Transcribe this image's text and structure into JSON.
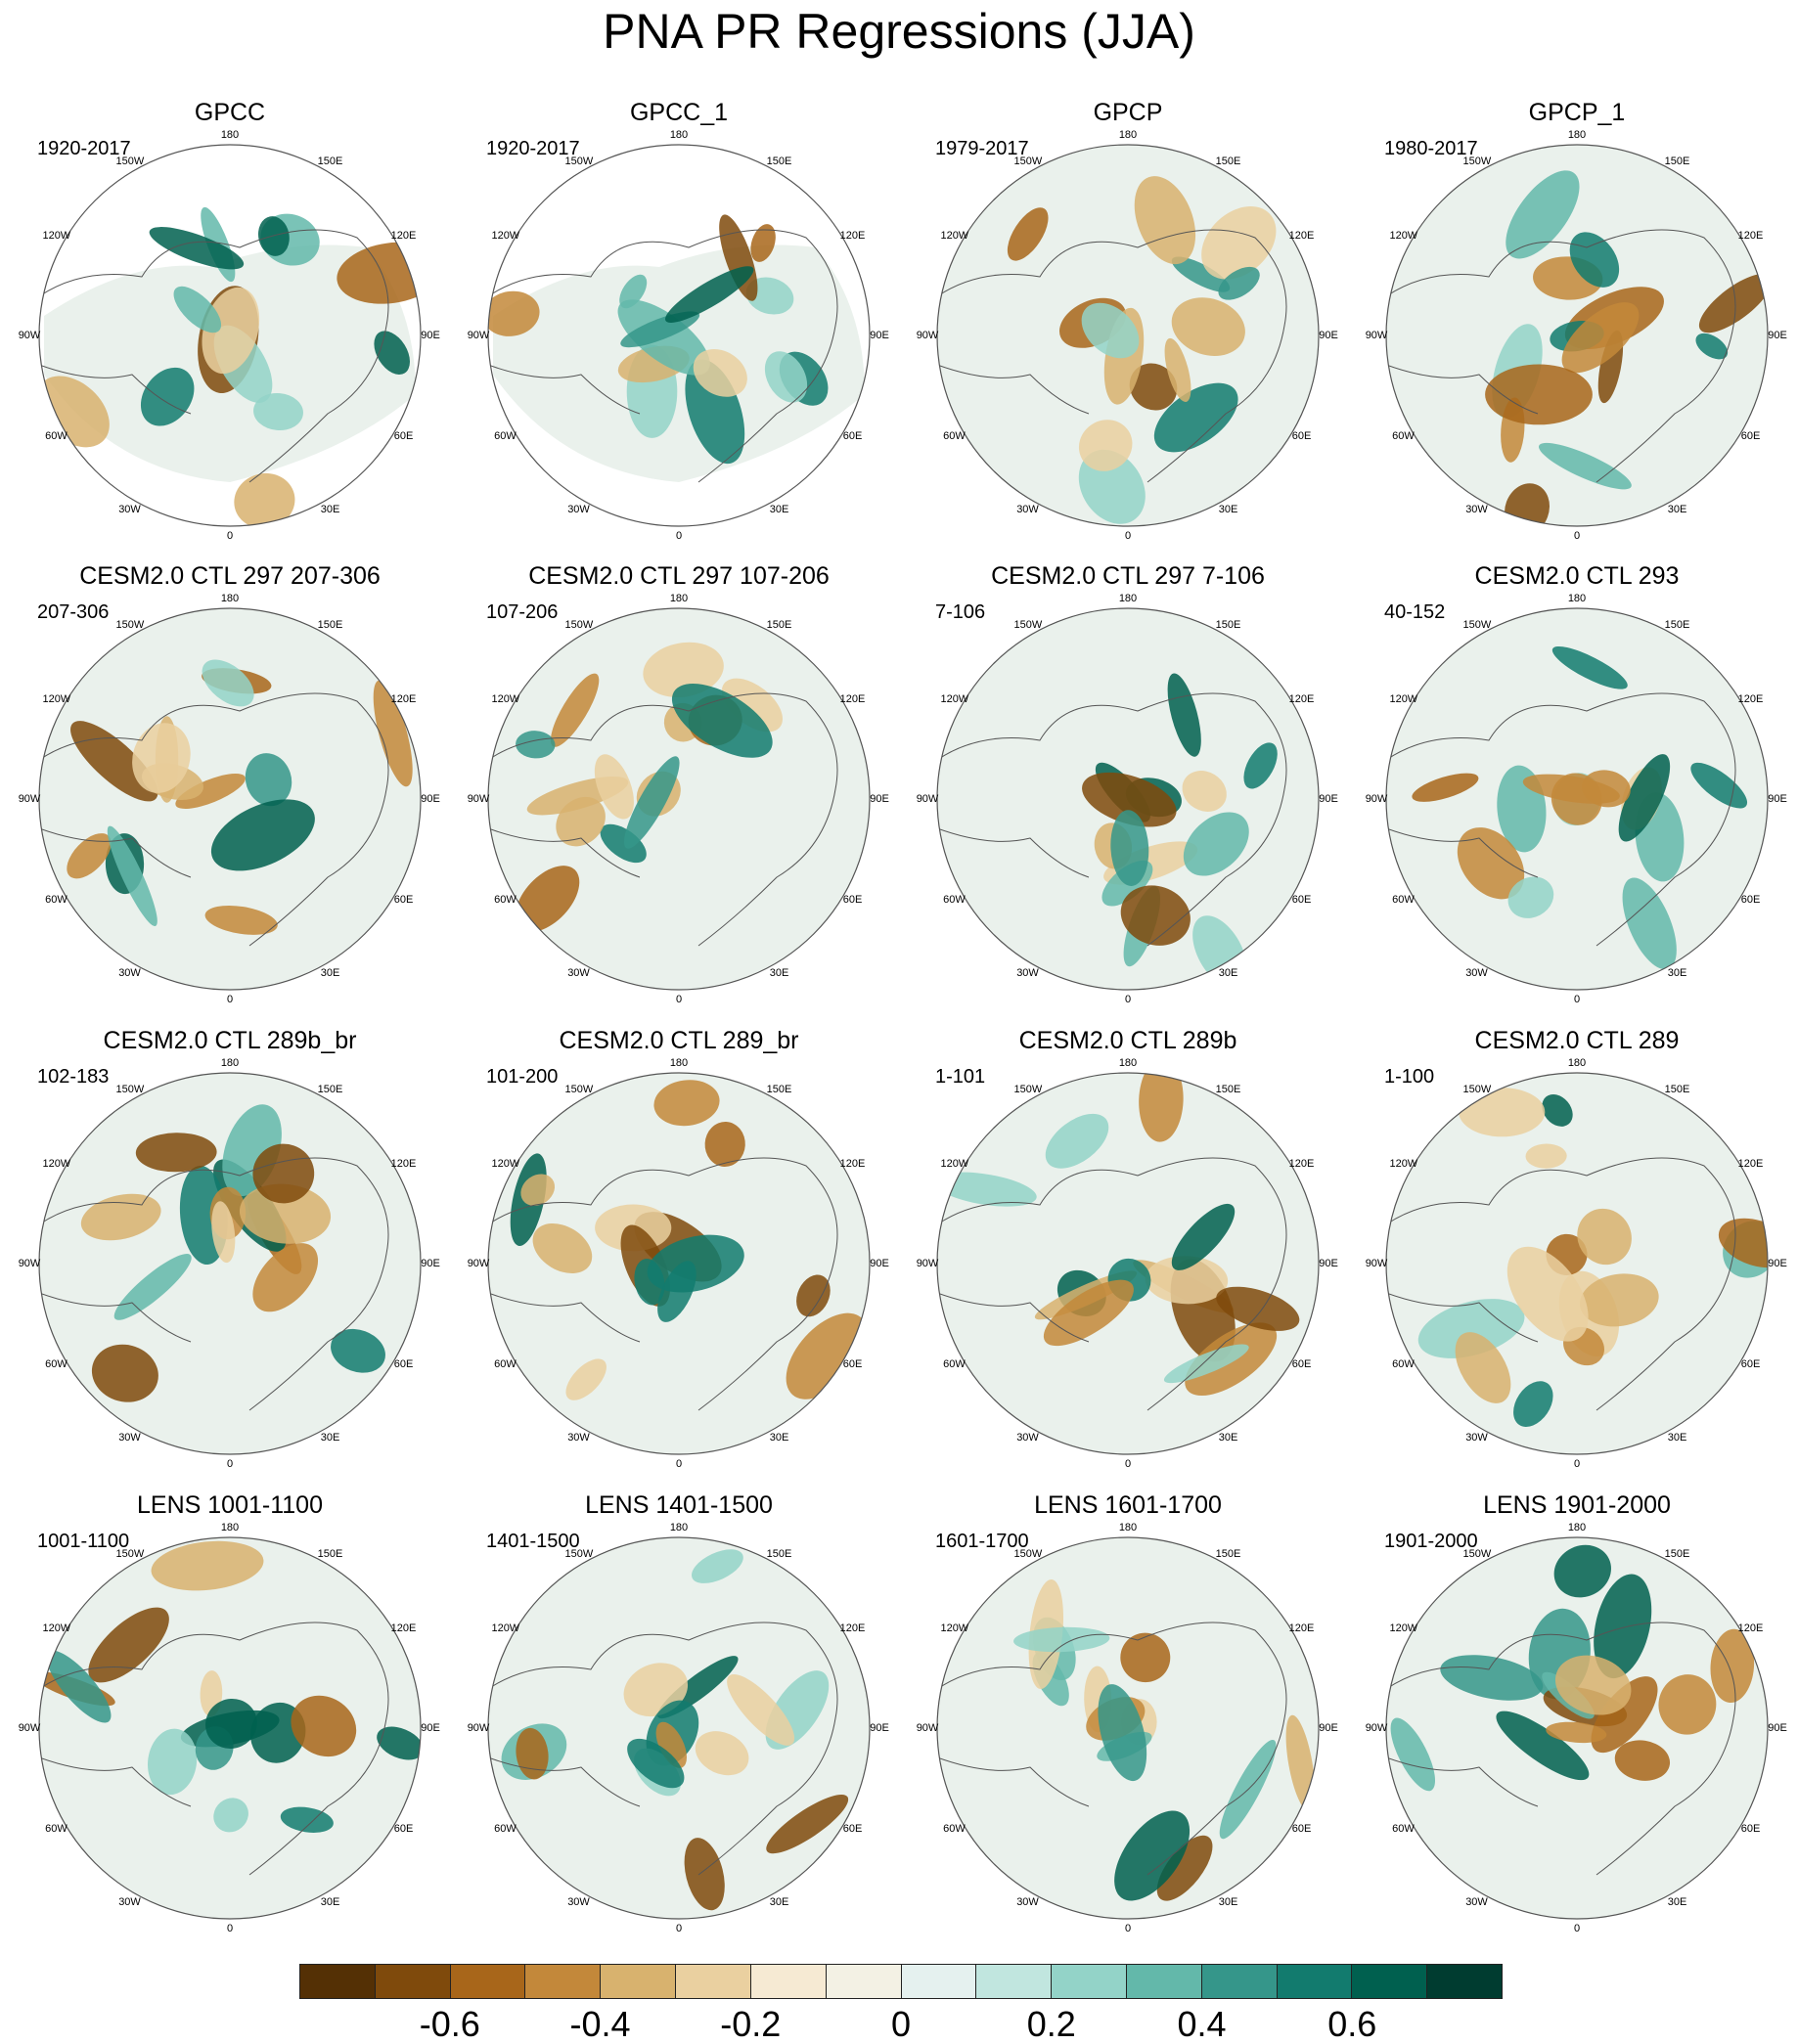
{
  "title": "PNA PR Regressions (JJA)",
  "longitude_labels": [
    "180",
    "150E",
    "120E",
    "90E",
    "60E",
    "30E",
    "0",
    "30W",
    "60W",
    "90W",
    "120W",
    "150W"
  ],
  "panels": [
    {
      "title": "GPCC",
      "period": "1920-2017",
      "data_coverage": "partial"
    },
    {
      "title": "GPCC_1",
      "period": "1920-2017",
      "data_coverage": "partial"
    },
    {
      "title": "GPCP",
      "period": "1979-2017",
      "data_coverage": "full"
    },
    {
      "title": "GPCP_1",
      "period": "1980-2017",
      "data_coverage": "full"
    },
    {
      "title": "CESM2.0 CTL 297 207-306",
      "period": "207-306",
      "data_coverage": "full"
    },
    {
      "title": "CESM2.0 CTL 297 107-206",
      "period": "107-206",
      "data_coverage": "full"
    },
    {
      "title": "CESM2.0 CTL 297 7-106",
      "period": "7-106",
      "data_coverage": "full"
    },
    {
      "title": "CESM2.0 CTL 293",
      "period": "40-152",
      "data_coverage": "full"
    },
    {
      "title": "CESM2.0 CTL 289b_br",
      "period": "102-183",
      "data_coverage": "full"
    },
    {
      "title": "CESM2.0 CTL 289_br",
      "period": "101-200",
      "data_coverage": "full"
    },
    {
      "title": "CESM2.0 CTL 289b",
      "period": "1-101",
      "data_coverage": "full"
    },
    {
      "title": "CESM2.0 CTL 289",
      "period": "1-100",
      "data_coverage": "full"
    },
    {
      "title": "LENS 1001-1100",
      "period": "1001-1100",
      "data_coverage": "full"
    },
    {
      "title": "LENS 1401-1500",
      "period": "1401-1500",
      "data_coverage": "full"
    },
    {
      "title": "LENS 1601-1700",
      "period": "1601-1700",
      "data_coverage": "full"
    },
    {
      "title": "LENS 1901-2000",
      "period": "1901-2000",
      "data_coverage": "full"
    }
  ],
  "colorbar": {
    "colors": [
      "#543005",
      "#7f4a0c",
      "#a8661a",
      "#c3883a",
      "#d8b26e",
      "#ead0a0",
      "#f6ead3",
      "#f3f1e4",
      "#e5f1ef",
      "#c1e6df",
      "#93d3c8",
      "#63b8aa",
      "#35968a",
      "#127b6e",
      "#00604f",
      "#003c30"
    ],
    "tick_labels": [
      "-0.6",
      "-0.4",
      "-0.2",
      "0",
      "0.2",
      "0.4",
      "0.6"
    ],
    "tick_values": [
      -0.6,
      -0.4,
      -0.2,
      0,
      0.2,
      0.4,
      0.6
    ],
    "range": [
      -0.8,
      0.8
    ]
  }
}
